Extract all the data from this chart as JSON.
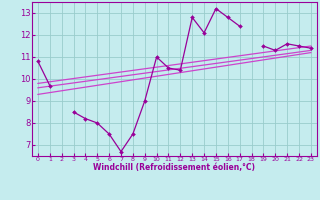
{
  "x": [
    0,
    1,
    2,
    3,
    4,
    5,
    6,
    7,
    8,
    9,
    10,
    11,
    12,
    13,
    14,
    15,
    16,
    17,
    18,
    19,
    20,
    21,
    22,
    23
  ],
  "line_main": [
    10.8,
    9.7,
    null,
    8.5,
    8.2,
    8.0,
    7.5,
    6.7,
    7.5,
    9.0,
    11.0,
    10.5,
    10.4,
    12.8,
    12.1,
    13.2,
    12.8,
    12.4,
    null,
    11.5,
    11.3,
    11.6,
    11.5,
    11.4
  ],
  "line_upper_start": 9.8,
  "line_upper_end": 11.5,
  "line_mid_start": 9.6,
  "line_mid_end": 11.3,
  "line_lower_start": 9.3,
  "line_lower_end": 11.2,
  "color_main": "#990099",
  "color_lines": "#cc44cc",
  "bg_color": "#c5ecee",
  "grid_color": "#99cccc",
  "xlabel": "Windchill (Refroidissement éolien,°C)",
  "ylim": [
    6.5,
    13.5
  ],
  "xlim": [
    -0.5,
    23.5
  ],
  "yticks": [
    7,
    8,
    9,
    10,
    11,
    12,
    13
  ],
  "xticks": [
    0,
    1,
    2,
    3,
    4,
    5,
    6,
    7,
    8,
    9,
    10,
    11,
    12,
    13,
    14,
    15,
    16,
    17,
    18,
    19,
    20,
    21,
    22,
    23
  ]
}
